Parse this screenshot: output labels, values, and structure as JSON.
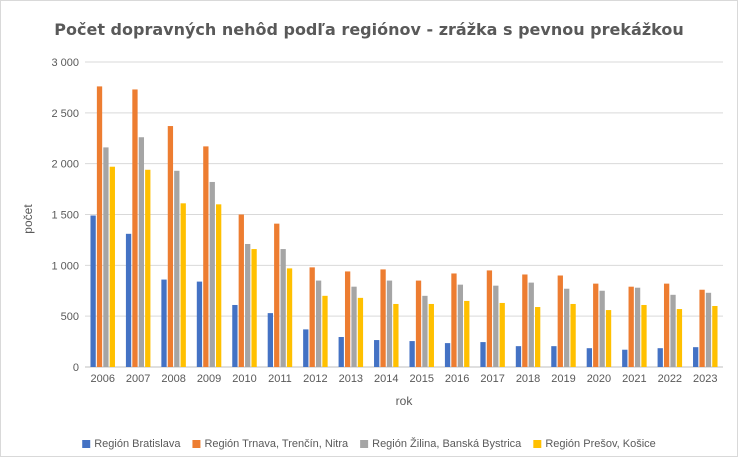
{
  "chart_data": {
    "type": "bar",
    "title": "Počet dopravných nehôd podľa regiónov - zrážka s pevnou prekážkou",
    "xlabel": "rok",
    "ylabel": "počet",
    "ylim": [
      0,
      3000
    ],
    "yticks": [
      "0",
      "500",
      "1 000",
      "1 500",
      "2 000",
      "2 500",
      "3 000"
    ],
    "grid": true,
    "legend_position": "bottom",
    "categories": [
      "2006",
      "2007",
      "2008",
      "2009",
      "2010",
      "2011",
      "2012",
      "2013",
      "2014",
      "2015",
      "2016",
      "2017",
      "2018",
      "2019",
      "2020",
      "2021",
      "2022",
      "2023"
    ],
    "series": [
      {
        "name": "Región Bratislava",
        "color": "#4472C4",
        "values": [
          1490,
          1310,
          860,
          840,
          610,
          530,
          370,
          295,
          265,
          255,
          235,
          245,
          205,
          205,
          185,
          170,
          185,
          195
        ]
      },
      {
        "name": "Región Trnava, Trenčín, Nitra",
        "color": "#ED7D31",
        "values": [
          2760,
          2730,
          2370,
          2170,
          1500,
          1410,
          980,
          940,
          960,
          850,
          920,
          950,
          910,
          900,
          820,
          790,
          820,
          760
        ]
      },
      {
        "name": "Región Žilina, Banská Bystrica",
        "color": "#A5A5A5",
        "values": [
          2160,
          2260,
          1930,
          1820,
          1210,
          1160,
          850,
          790,
          850,
          700,
          810,
          800,
          830,
          770,
          750,
          780,
          710,
          730
        ]
      },
      {
        "name": "Región Prešov, Košice",
        "color": "#FFC000",
        "values": [
          1970,
          1940,
          1610,
          1600,
          1160,
          970,
          700,
          680,
          620,
          620,
          650,
          630,
          590,
          620,
          560,
          610,
          570,
          600
        ]
      }
    ]
  }
}
